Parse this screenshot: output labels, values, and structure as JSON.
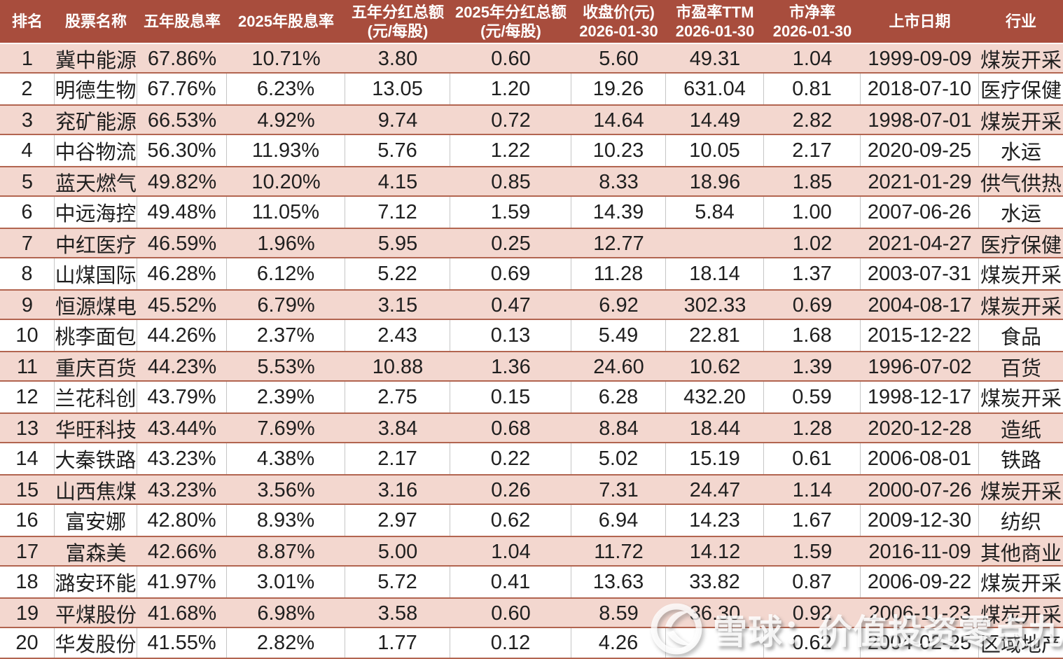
{
  "table": {
    "columns": [
      {
        "key": "rank",
        "label": "排名",
        "label2": ""
      },
      {
        "key": "name",
        "label": "股票名称",
        "label2": ""
      },
      {
        "key": "yield5y",
        "label": "五年股息率",
        "label2": ""
      },
      {
        "key": "yield2025",
        "label": "2025年股息率",
        "label2": ""
      },
      {
        "key": "div5y",
        "label": "五年分红总额",
        "label2": "(元/每股)"
      },
      {
        "key": "div2025",
        "label": "2025年分红总额",
        "label2": "(元/每股)"
      },
      {
        "key": "close",
        "label": "收盘价(元)",
        "label2": "2026-01-30"
      },
      {
        "key": "pe",
        "label": "市盈率TTM",
        "label2": "2026-01-30"
      },
      {
        "key": "pb",
        "label": "市净率",
        "label2": "2026-01-30"
      },
      {
        "key": "listDate",
        "label": "上市日期",
        "label2": ""
      },
      {
        "key": "industry",
        "label": "行业",
        "label2": ""
      }
    ],
    "rows": [
      {
        "rank": "1",
        "name": "冀中能源",
        "yield5y": "67.86%",
        "yield2025": "10.71%",
        "div5y": "3.80",
        "div2025": "0.60",
        "close": "5.60",
        "pe": "49.31",
        "pb": "1.04",
        "listDate": "1999-09-09",
        "industry": "煤炭开采"
      },
      {
        "rank": "2",
        "name": "明德生物",
        "yield5y": "67.76%",
        "yield2025": "6.23%",
        "div5y": "13.05",
        "div2025": "1.20",
        "close": "19.26",
        "pe": "631.04",
        "pb": "0.81",
        "listDate": "2018-07-10",
        "industry": "医疗保健"
      },
      {
        "rank": "3",
        "name": "兖矿能源",
        "yield5y": "66.53%",
        "yield2025": "4.92%",
        "div5y": "9.74",
        "div2025": "0.72",
        "close": "14.64",
        "pe": "14.49",
        "pb": "2.82",
        "listDate": "1998-07-01",
        "industry": "煤炭开采"
      },
      {
        "rank": "4",
        "name": "中谷物流",
        "yield5y": "56.30%",
        "yield2025": "11.93%",
        "div5y": "5.76",
        "div2025": "1.22",
        "close": "10.23",
        "pe": "10.05",
        "pb": "2.17",
        "listDate": "2020-09-25",
        "industry": "水运"
      },
      {
        "rank": "5",
        "name": "蓝天燃气",
        "yield5y": "49.82%",
        "yield2025": "10.20%",
        "div5y": "4.15",
        "div2025": "0.85",
        "close": "8.33",
        "pe": "18.96",
        "pb": "1.85",
        "listDate": "2021-01-29",
        "industry": "供气供热"
      },
      {
        "rank": "6",
        "name": "中远海控",
        "yield5y": "49.48%",
        "yield2025": "11.05%",
        "div5y": "7.12",
        "div2025": "1.59",
        "close": "14.39",
        "pe": "5.84",
        "pb": "1.00",
        "listDate": "2007-06-26",
        "industry": "水运"
      },
      {
        "rank": "7",
        "name": "中红医疗",
        "yield5y": "46.59%",
        "yield2025": "1.96%",
        "div5y": "5.95",
        "div2025": "0.25",
        "close": "12.77",
        "pe": "",
        "pb": "1.02",
        "listDate": "2021-04-27",
        "industry": "医疗保健"
      },
      {
        "rank": "8",
        "name": "山煤国际",
        "yield5y": "46.28%",
        "yield2025": "6.12%",
        "div5y": "5.22",
        "div2025": "0.69",
        "close": "11.28",
        "pe": "18.14",
        "pb": "1.37",
        "listDate": "2003-07-31",
        "industry": "煤炭开采"
      },
      {
        "rank": "9",
        "name": "恒源煤电",
        "yield5y": "45.52%",
        "yield2025": "6.79%",
        "div5y": "3.15",
        "div2025": "0.47",
        "close": "6.92",
        "pe": "302.33",
        "pb": "0.69",
        "listDate": "2004-08-17",
        "industry": "煤炭开采"
      },
      {
        "rank": "10",
        "name": "桃李面包",
        "yield5y": "44.26%",
        "yield2025": "2.37%",
        "div5y": "2.43",
        "div2025": "0.13",
        "close": "5.49",
        "pe": "22.81",
        "pb": "1.68",
        "listDate": "2015-12-22",
        "industry": "食品"
      },
      {
        "rank": "11",
        "name": "重庆百货",
        "yield5y": "44.23%",
        "yield2025": "5.53%",
        "div5y": "10.88",
        "div2025": "1.36",
        "close": "24.60",
        "pe": "10.62",
        "pb": "1.39",
        "listDate": "1996-07-02",
        "industry": "百货"
      },
      {
        "rank": "12",
        "name": "兰花科创",
        "yield5y": "43.79%",
        "yield2025": "2.39%",
        "div5y": "2.75",
        "div2025": "0.15",
        "close": "6.28",
        "pe": "432.20",
        "pb": "0.59",
        "listDate": "1998-12-17",
        "industry": "煤炭开采"
      },
      {
        "rank": "13",
        "name": "华旺科技",
        "yield5y": "43.44%",
        "yield2025": "7.69%",
        "div5y": "3.84",
        "div2025": "0.68",
        "close": "8.84",
        "pe": "18.44",
        "pb": "1.28",
        "listDate": "2020-12-28",
        "industry": "造纸"
      },
      {
        "rank": "14",
        "name": "大秦铁路",
        "yield5y": "43.23%",
        "yield2025": "4.38%",
        "div5y": "2.17",
        "div2025": "0.22",
        "close": "5.02",
        "pe": "15.19",
        "pb": "0.61",
        "listDate": "2006-08-01",
        "industry": "铁路"
      },
      {
        "rank": "15",
        "name": "山西焦煤",
        "yield5y": "43.23%",
        "yield2025": "3.56%",
        "div5y": "3.16",
        "div2025": "0.26",
        "close": "7.31",
        "pe": "24.47",
        "pb": "1.14",
        "listDate": "2000-07-26",
        "industry": "煤炭开采"
      },
      {
        "rank": "16",
        "name": "富安娜",
        "yield5y": "42.80%",
        "yield2025": "8.93%",
        "div5y": "2.97",
        "div2025": "0.62",
        "close": "6.94",
        "pe": "14.23",
        "pb": "1.67",
        "listDate": "2009-12-30",
        "industry": "纺织"
      },
      {
        "rank": "17",
        "name": "富森美",
        "yield5y": "42.66%",
        "yield2025": "8.87%",
        "div5y": "5.00",
        "div2025": "1.04",
        "close": "11.72",
        "pe": "14.12",
        "pb": "1.59",
        "listDate": "2016-11-09",
        "industry": "其他商业"
      },
      {
        "rank": "18",
        "name": "潞安环能",
        "yield5y": "41.97%",
        "yield2025": "3.01%",
        "div5y": "5.72",
        "div2025": "0.41",
        "close": "13.63",
        "pe": "33.82",
        "pb": "0.87",
        "listDate": "2006-09-22",
        "industry": "煤炭开采"
      },
      {
        "rank": "19",
        "name": "平煤股份",
        "yield5y": "41.68%",
        "yield2025": "6.98%",
        "div5y": "3.58",
        "div2025": "0.60",
        "close": "8.59",
        "pe": "36.30",
        "pb": "0.92",
        "listDate": "2006-11-23",
        "industry": "煤炭开采"
      },
      {
        "rank": "20",
        "name": "华发股份",
        "yield5y": "41.55%",
        "yield2025": "2.82%",
        "div5y": "1.77",
        "div2025": "0.12",
        "close": "4.26",
        "pe": "",
        "pb": "0.62",
        "listDate": "2004-02-25",
        "industry": "区域地产"
      }
    ]
  },
  "watermark": {
    "text": "雪球：价值投资零点九九",
    "logo": "xueqiu-logo"
  },
  "colors": {
    "header_bg": "#a84d3d",
    "header_text": "#ffffff",
    "row_pink_bg": "#f3d7cf",
    "row_pink_border": "#b26550",
    "row_white_bg": "#ffffff",
    "gridline_gray": "#c6c6c6",
    "cell_text": "#1f1f1f"
  }
}
